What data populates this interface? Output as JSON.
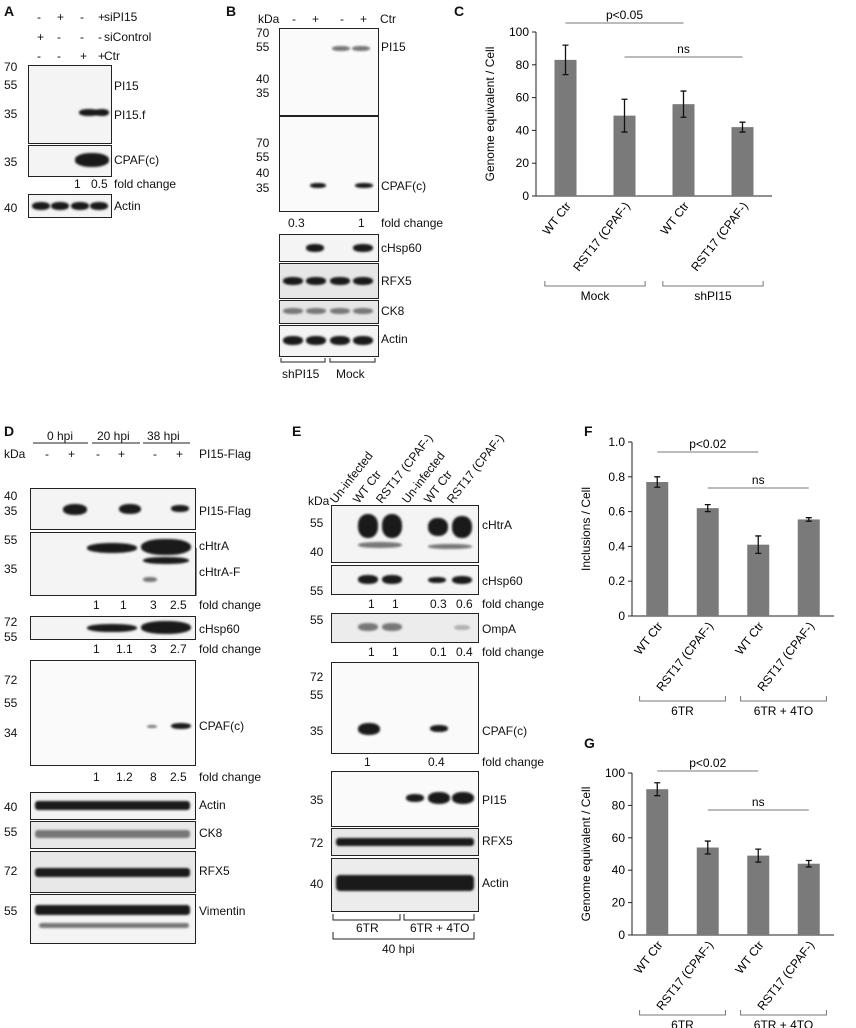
{
  "panels": [
    "A",
    "B",
    "C",
    "D",
    "E",
    "F",
    "G"
  ],
  "A": {
    "signs": {
      "siPI15": [
        "-",
        "+",
        "-",
        "+"
      ],
      "siControl": [
        "+",
        "-",
        "-",
        "-"
      ],
      "Ctr": [
        "-",
        "-",
        "+",
        "+"
      ]
    },
    "row_labels": [
      "siPI15",
      "siControl",
      "Ctr"
    ],
    "mw": [
      "70",
      "55",
      "35",
      "35",
      "40"
    ],
    "blots": [
      "PI15",
      "PI15.f",
      "CPAF(c)",
      "Actin"
    ],
    "fold": [
      "1",
      "0.5"
    ],
    "fold_label": "fold change"
  },
  "B": {
    "kda": "kDa",
    "ctr_label": "Ctr",
    "signs": [
      "-",
      "+",
      "-",
      "+"
    ],
    "mw1": [
      "70",
      "55",
      "40",
      "35"
    ],
    "mw2": [
      "70",
      "55",
      "40",
      "35"
    ],
    "blots": [
      "PI15",
      "CPAF(c)",
      "cHsp60",
      "RFX5",
      "CK8",
      "Actin"
    ],
    "fold": [
      "0.3",
      "1"
    ],
    "fold_label": "fold change",
    "groups": [
      "shPI15",
      "Mock"
    ]
  },
  "D": {
    "times": [
      "0 hpi",
      "20 hpi",
      "38 hpi"
    ],
    "kda": "kDa",
    "flag_label": "PI15-Flag",
    "signs": [
      "-",
      "+",
      "-",
      "+",
      "-",
      "+"
    ],
    "mw": [
      "40",
      "35",
      "55",
      "35",
      "72",
      "55",
      "72",
      "55",
      "34",
      "40",
      "55",
      "72",
      "55"
    ],
    "blots": [
      "PI15-Flag",
      "cHtrA",
      "cHtrA-F",
      "cHsp60",
      "CPAF(c)",
      "Actin",
      "CK8",
      "RFX5",
      "Vimentin"
    ],
    "fold1": [
      "1",
      "1",
      "3",
      "2.5"
    ],
    "fold2": [
      "1",
      "1.1",
      "3",
      "2.7"
    ],
    "fold3": [
      "1",
      "1.2",
      "8",
      "2.5"
    ],
    "fold_label": "fold change"
  },
  "E": {
    "kda": "kDa",
    "lanes": [
      "Un-infected",
      "WT Ctr",
      "RST17 (CPAF-)",
      "Un-infected",
      "WT Ctr",
      "RST17 (CPAF-)"
    ],
    "mw": [
      "55",
      "40",
      "55",
      "55",
      "72",
      "55",
      "35",
      "35",
      "72",
      "40"
    ],
    "blots": [
      "cHtrA",
      "cHsp60",
      "OmpA",
      "CPAF(c)",
      "PI15",
      "RFX5",
      "Actin"
    ],
    "fold_hsp": [
      "1",
      "1",
      "0.3",
      "0.6"
    ],
    "fold_omp": [
      "1",
      "1",
      "0.1",
      "0.4"
    ],
    "fold_cpaf": [
      "1",
      "0.4"
    ],
    "fold_label": "fold change",
    "groups": [
      "6TR",
      "6TR + 4TO"
    ],
    "time": "40 hpi"
  },
  "chart_data": [
    {
      "panel": "C",
      "type": "bar",
      "categories": [
        "WT Ctr",
        "RST17 (CPAF-)",
        "WT Ctr",
        "RST17 (CPAF-)"
      ],
      "values": [
        83,
        49,
        56,
        42
      ],
      "errors": [
        9,
        10,
        8,
        3
      ],
      "ylabel": "Genome equivalent / Cell",
      "ylim": [
        0,
        100
      ],
      "yticks": [
        "0",
        "20",
        "40",
        "60",
        "80",
        "100"
      ],
      "groups": [
        "Mock",
        "shPI15"
      ],
      "sig": [
        "p<0.05",
        "ns"
      ],
      "bar_color": "#7a7a7a"
    },
    {
      "panel": "F",
      "type": "bar",
      "categories": [
        "WT Ctr",
        "RST17 (CPAF-)",
        "WT Ctr",
        "RST17 (CPAF-)"
      ],
      "values": [
        0.77,
        0.62,
        0.41,
        0.555
      ],
      "errors": [
        0.03,
        0.02,
        0.05,
        0.01
      ],
      "ylabel": "Inclusions / Cell",
      "ylim": [
        0,
        1.0
      ],
      "yticks": [
        "0",
        "0.2",
        "0.4",
        "0.6",
        "0.8",
        "1.0"
      ],
      "groups": [
        "6TR",
        "6TR + 4TO"
      ],
      "sig": [
        "p<0.02",
        "ns"
      ],
      "bar_color": "#7a7a7a"
    },
    {
      "panel": "G",
      "type": "bar",
      "categories": [
        "WT Ctr",
        "RST17 (CPAF-)",
        "WT Ctr",
        "RST17 (CPAF-)"
      ],
      "values": [
        90,
        54,
        49,
        44
      ],
      "errors": [
        4,
        4,
        4,
        2
      ],
      "ylabel": "Genome equivalent / Cell",
      "ylim": [
        0,
        100
      ],
      "yticks": [
        "0",
        "20",
        "40",
        "60",
        "80",
        "100"
      ],
      "groups": [
        "6TR",
        "6TR + 4TO"
      ],
      "sig": [
        "p<0.02",
        "ns"
      ],
      "bar_color": "#7a7a7a"
    }
  ]
}
